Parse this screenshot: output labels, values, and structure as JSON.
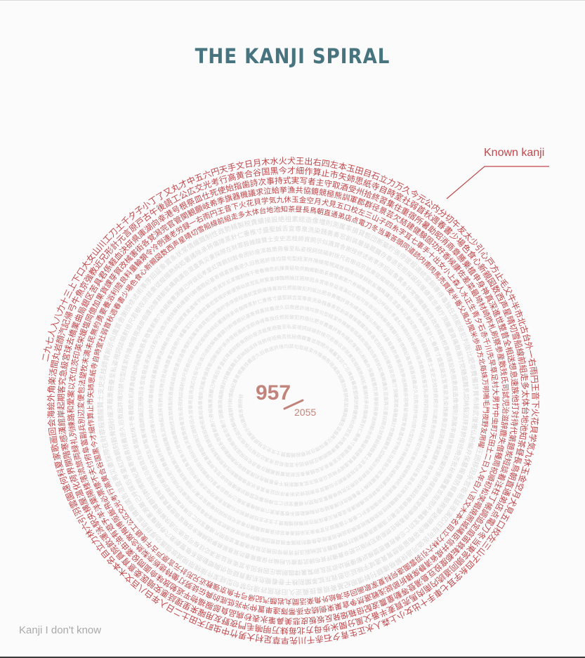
{
  "title": "THE KANJI SPIRAL",
  "legend": {
    "known_label": "Known kanji",
    "unknown_label": "Kanji I don't know"
  },
  "counter": {
    "known": "957",
    "total": "2055"
  },
  "colors": {
    "known": "#c0474b",
    "unknown": "#dcdcdc",
    "counter": "#c0847a",
    "title": "#47747f",
    "leader_line": "#c0474b"
  },
  "spiral": {
    "visible_start_sequence": "二九七人入八力十三上下口大女山川工刀土千夕子小丁了又丸才中五六円天手文日月木水火犬王出右四左本玉田目石立力万久今元公内分切午友太少引心戸方止毛父牛半市北古台外",
    "known_sample_text": "一右雨円王音下火花貝学気九休玉金空月犬見五口校左三山子四糸字耳七車手十出女小上森人水正生青夕石赤千川先早草足村大男竹中虫町天田土二日入年白八百文木本名目立力林六引羽雲園遠何科夏家歌画回会海絵外角楽活間丸岩顔汽記帰弓牛魚京強教近兄形計元言原戸古午後語工公広交光考行高黄合谷国黒今才細作算止市矢姉思紙寺自時室社弱首秋週春書少場色食心新親図数西声星晴切雪船線前組走多太体台地池知茶昼長鳥朝直通弟店点電刀冬当東答頭同道読内南肉馬売買麦半番父風分聞米歩母方北毎妹万明鳴毛門夜野友用曜来里理話悪安暗医委意育員院飲運泳駅央横屋温化荷界開階寒感漢館岸起期客究急級宮球去橋業曲局銀区苦具君係軽血決研県庫湖向幸港号根祭皿仕死使始指歯詩次事持式実写者主守取酒受州拾終習集住重宿所暑助昭消商章勝乗植申身神真深進世整昔全相送想息速族他打対待代第題炭短談着注柱丁帳調追定庭笛鉄転都度投豆島湯登等動童農波配倍箱畑発反坂板皮悲美鼻筆氷表秒病品負部服福物平返勉放味命面問役薬由油有遊予羊洋葉陽様落流旅両緑礼列練路和愛案以衣位茨印英栄媛塩岡億加果貨課芽賀改械害街各覚潟完官管関観願岐希季旗器機議求泣給挙漁共協鏡競極熊訓軍郡群径景芸欠結建健験固功好香候康佐差菜最埼材崎昨札刷察参産散残氏司試児治滋辞鹿失借種周祝順初松笑唱焼照城縄臣信井成省清静席積折節説浅戦選然争倉巣束側続卒孫帯隊達単置仲沖兆低底的典伝徒努灯働特徳栃奈梨熱念敗梅博阪飯飛必票標不夫付府阜富副兵別辺変便包法望牧末満未民無約勇要養浴利陸良料量輪類令冷例連老労録",
    "unknown_sample_text": "圧囲移因永営衛易益液演応往桜可仮価河過快解格確額刊幹慣眼紀基寄規喜技義逆久旧救居許境均禁句型経潔件険検限現減故個護効厚耕航鉱構興講告混査再災妻採際在財罪殺雑酸賛士支史志枝師資飼示似識質舎謝授修述術準序招証象賞条状常情織職制性政勢精製税責績接設絶祖素総造像増則測属率損貸態団断築貯張停提程適統堂銅導得毒独任燃能破犯判版比肥非費備評貧布婦武復複仏粉編弁保墓報豊防貿暴脈務夢迷綿輸余容略留領歴胃異遺域宇映延沿恩我灰拡革閣割株干巻看簡危机揮貴疑吸供胸郷勤筋系敬警劇激穴券絹権憲源厳己呼誤后孝皇紅降鋼刻穀骨困砂座済裁策冊蚕至私姿視詞誌磁射捨尺若樹収宗就衆従縦縮熟純処署諸除承将傷障蒸針仁垂推寸盛聖誠舌宣専泉洗染銭善奏窓創装層操蔵臓存尊退宅担探誕段暖値宙忠著庁頂腸潮賃痛敵展討党糖届難乳認納脳派拝背肺俳班晩否批秘俵腹奮並陛閉片補暮宝訪亡忘棒枚幕密盟模訳郵優預幼欲翌乱卵覧裏律臨朗論"
  }
}
